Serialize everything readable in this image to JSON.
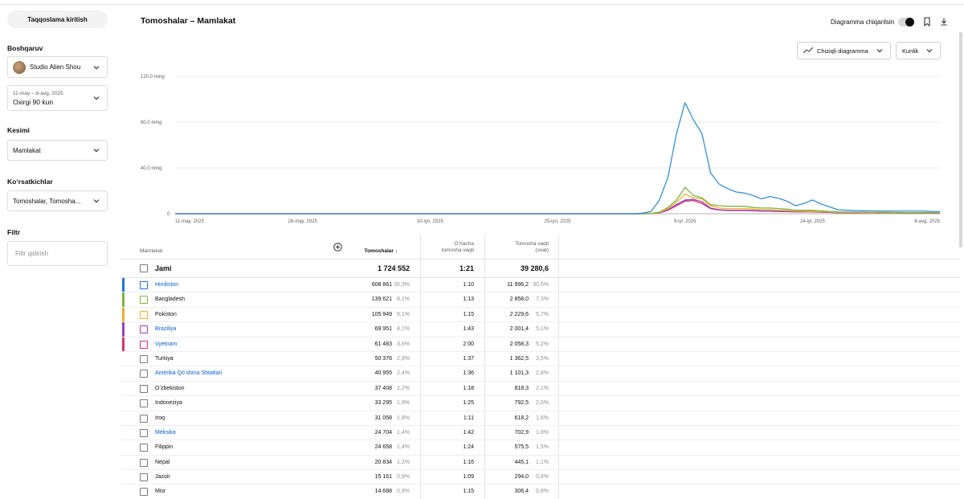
{
  "sidebar": {
    "compare_label": "Taqqoslama kiritish",
    "manage_title": "Boshqaruv",
    "channel_name": "Studio Alien Shou",
    "date_range": "11-may – 8-avg, 2025",
    "date_preset": "Oxirgi 90 kun",
    "breakdown_title": "Kesimi",
    "breakdown_value": "Mamlakat",
    "metrics_title": "Koʻrsatkichlar",
    "metrics_value": "Tomoshalar, Tomosha...",
    "filter_title": "Filtr",
    "filter_placeholder": "Filtr qidirish"
  },
  "header": {
    "title": "Tomoshalar – Mamlakat",
    "toggle_label": "Diagramma chiqarilsin",
    "toggle_on": true
  },
  "chart_controls": {
    "chart_type_label": "Chiziqli diagramma",
    "interval_label": "Kunlik"
  },
  "chart_data": {
    "type": "line",
    "ylabels": [
      "120,0 ming",
      "80,0 ming",
      "40,0 ming",
      "0"
    ],
    "ylim": [
      0,
      120000
    ],
    "xlabels": [
      "11-may, 2025",
      "26-may, 2025",
      "10-iyn, 2025",
      "25-iyn, 2025",
      "9-iyl, 2025",
      "24-iyl, 2025",
      "8-avg, 2025"
    ],
    "grid": true,
    "series": [
      {
        "name": "Hindiston",
        "color": "#3b8fd4",
        "values": [
          0,
          0,
          0,
          0,
          0,
          0,
          0,
          0,
          0,
          0,
          0,
          0,
          0,
          0,
          0,
          0,
          0,
          0,
          0,
          0,
          0,
          0,
          0,
          0,
          0,
          0,
          0,
          0,
          0,
          0,
          0,
          0,
          0,
          0,
          0,
          0,
          0,
          0,
          0,
          0,
          0,
          0,
          0,
          0,
          0,
          0,
          0,
          0,
          0,
          0,
          0,
          0,
          0,
          0,
          0,
          500,
          2000,
          12000,
          32000,
          70000,
          97000,
          82000,
          70000,
          36000,
          26000,
          22000,
          19000,
          18000,
          16000,
          13000,
          15000,
          13500,
          11000,
          7000,
          9000,
          12000,
          8500,
          6000,
          3500,
          3000,
          2800,
          2600,
          2500,
          2400,
          2300,
          2300,
          2400,
          2400,
          2300,
          2000,
          1800
        ]
      },
      {
        "name": "Bangladesh",
        "color": "#7cb342",
        "values": [
          0,
          0,
          0,
          0,
          0,
          0,
          0,
          0,
          0,
          0,
          0,
          0,
          0,
          0,
          0,
          0,
          0,
          0,
          0,
          0,
          0,
          0,
          0,
          0,
          0,
          0,
          0,
          0,
          0,
          0,
          0,
          0,
          0,
          0,
          0,
          0,
          0,
          0,
          0,
          0,
          0,
          0,
          0,
          0,
          0,
          0,
          0,
          0,
          0,
          0,
          0,
          0,
          0,
          0,
          0,
          0,
          300,
          1500,
          5500,
          12000,
          23000,
          16000,
          14000,
          8000,
          7000,
          6500,
          6500,
          6500,
          5500,
          5000,
          5000,
          4500,
          4000,
          3000,
          3000,
          3000,
          2500,
          2000,
          1600,
          1500,
          1500,
          1400,
          1300,
          1200,
          1100,
          1000,
          1000,
          900,
          900,
          900,
          800
        ]
      },
      {
        "name": "Pokiston",
        "color": "#f0ad2a",
        "values": [
          0,
          0,
          0,
          0,
          0,
          0,
          0,
          0,
          0,
          0,
          0,
          0,
          0,
          0,
          0,
          0,
          0,
          0,
          0,
          0,
          0,
          0,
          0,
          0,
          0,
          0,
          0,
          0,
          0,
          0,
          0,
          0,
          0,
          0,
          0,
          0,
          0,
          0,
          0,
          0,
          0,
          0,
          0,
          0,
          0,
          0,
          0,
          0,
          0,
          0,
          0,
          0,
          0,
          0,
          0,
          0,
          200,
          1000,
          4500,
          10000,
          17000,
          14000,
          13000,
          7000,
          5000,
          4500,
          4500,
          4500,
          4000,
          3500,
          3500,
          3000,
          2800,
          2200,
          2200,
          2000,
          1800,
          1500,
          1200,
          1100,
          1100,
          1000,
          900,
          900,
          800,
          800,
          700,
          700,
          700,
          700,
          700
        ]
      },
      {
        "name": "Braziliya",
        "color": "#9c3fc2",
        "values": [
          0,
          0,
          0,
          0,
          0,
          0,
          0,
          0,
          0,
          0,
          0,
          0,
          0,
          0,
          0,
          0,
          0,
          0,
          0,
          0,
          0,
          0,
          0,
          0,
          0,
          0,
          0,
          0,
          0,
          0,
          0,
          0,
          0,
          0,
          0,
          0,
          0,
          0,
          0,
          0,
          0,
          0,
          0,
          0,
          0,
          0,
          0,
          0,
          0,
          0,
          0,
          0,
          0,
          0,
          0,
          0,
          150,
          800,
          3500,
          8000,
          12000,
          12500,
          10500,
          5000,
          3500,
          3000,
          3000,
          3000,
          2800,
          2500,
          2500,
          2200,
          2000,
          1800,
          1800,
          1800,
          1500,
          1200,
          1000,
          900,
          900,
          800,
          800,
          700,
          700,
          700,
          600,
          600,
          600,
          600,
          600
        ]
      },
      {
        "name": "Vyetnam",
        "color": "#d6336c",
        "values": [
          0,
          0,
          0,
          0,
          0,
          0,
          0,
          0,
          0,
          0,
          0,
          0,
          0,
          0,
          0,
          0,
          0,
          0,
          0,
          0,
          0,
          0,
          0,
          0,
          0,
          0,
          0,
          0,
          0,
          0,
          0,
          0,
          0,
          0,
          0,
          0,
          0,
          0,
          0,
          0,
          0,
          0,
          0,
          0,
          0,
          0,
          0,
          0,
          0,
          0,
          0,
          0,
          0,
          0,
          0,
          0,
          100,
          700,
          3000,
          7000,
          11000,
          11500,
          9000,
          4500,
          3200,
          2800,
          2800,
          2800,
          2600,
          2300,
          2300,
          2000,
          1800,
          1600,
          1600,
          1600,
          1300,
          1100,
          900,
          800,
          800,
          700,
          700,
          600,
          600,
          600,
          500,
          500,
          500,
          500,
          500
        ]
      }
    ]
  },
  "table": {
    "headers": {
      "country": "Mamlakat",
      "views": "Tomoshalar",
      "avg_line1": "Oʻrtacha",
      "avg_line2": "tomosha vaqti",
      "watch_line1": "Tomosha vaqti",
      "watch_line2": "(soat)"
    },
    "total": {
      "label": "Jami",
      "views": "1 724 552",
      "avg": "1:21",
      "watch": "39 280,6"
    },
    "rows": [
      {
        "name": "Hindiston",
        "link": true,
        "color": "#1a73e8",
        "views": "608 861",
        "views_pct": "35,3%",
        "avg": "1:10",
        "watch": "11 996,2",
        "watch_pct": "30,5%"
      },
      {
        "name": "Bangladesh",
        "link": false,
        "color": "#7cb342",
        "views": "139 621",
        "views_pct": "8,1%",
        "avg": "1:13",
        "watch": "2 858,0",
        "watch_pct": "7,3%"
      },
      {
        "name": "Pokiston",
        "link": false,
        "color": "#f0ad2a",
        "views": "105 949",
        "views_pct": "6,1%",
        "avg": "1:15",
        "watch": "2 229,6",
        "watch_pct": "5,7%"
      },
      {
        "name": "Braziliya",
        "link": true,
        "color": "#9c3fc2",
        "views": "69 951",
        "views_pct": "4,1%",
        "avg": "1:43",
        "watch": "2 001,4",
        "watch_pct": "5,1%"
      },
      {
        "name": "Vyetnam",
        "link": true,
        "color": "#d6336c",
        "views": "61 483",
        "views_pct": "3,6%",
        "avg": "2:00",
        "watch": "2 058,3",
        "watch_pct": "5,2%"
      },
      {
        "name": "Turkiya",
        "link": false,
        "color": "",
        "views": "50 376",
        "views_pct": "2,9%",
        "avg": "1:37",
        "watch": "1 362,5",
        "watch_pct": "3,5%"
      },
      {
        "name": "Amerika Qoʻshma Shtatlari",
        "link": true,
        "color": "",
        "views": "40 955",
        "views_pct": "2,4%",
        "avg": "1:36",
        "watch": "1 101,3",
        "watch_pct": "2,8%"
      },
      {
        "name": "Oʻzbekiston",
        "link": false,
        "color": "",
        "views": "37 408",
        "views_pct": "2,2%",
        "avg": "1:18",
        "watch": "818,3",
        "watch_pct": "2,1%"
      },
      {
        "name": "Indoneziya",
        "link": false,
        "color": "",
        "views": "33 295",
        "views_pct": "1,9%",
        "avg": "1:25",
        "watch": "792,5",
        "watch_pct": "2,0%"
      },
      {
        "name": "Iroq",
        "link": false,
        "color": "",
        "views": "31 058",
        "views_pct": "1,8%",
        "avg": "1:11",
        "watch": "618,2",
        "watch_pct": "1,6%"
      },
      {
        "name": "Meksika",
        "link": true,
        "color": "",
        "views": "24 704",
        "views_pct": "1,4%",
        "avg": "1:42",
        "watch": "702,9",
        "watch_pct": "1,8%"
      },
      {
        "name": "Filippin",
        "link": false,
        "color": "",
        "views": "24 658",
        "views_pct": "1,4%",
        "avg": "1:24",
        "watch": "575,5",
        "watch_pct": "1,5%"
      },
      {
        "name": "Nepal",
        "link": false,
        "color": "",
        "views": "20 834",
        "views_pct": "1,2%",
        "avg": "1:16",
        "watch": "445,1",
        "watch_pct": "1,1%"
      },
      {
        "name": "Jazoir",
        "link": false,
        "color": "",
        "views": "15 161",
        "views_pct": "0,9%",
        "avg": "1:09",
        "watch": "294,0",
        "watch_pct": "0,8%"
      },
      {
        "name": "Misr",
        "link": false,
        "color": "",
        "views": "14 688",
        "views_pct": "0,9%",
        "avg": "1:15",
        "watch": "306,4",
        "watch_pct": "0,8%"
      }
    ]
  }
}
